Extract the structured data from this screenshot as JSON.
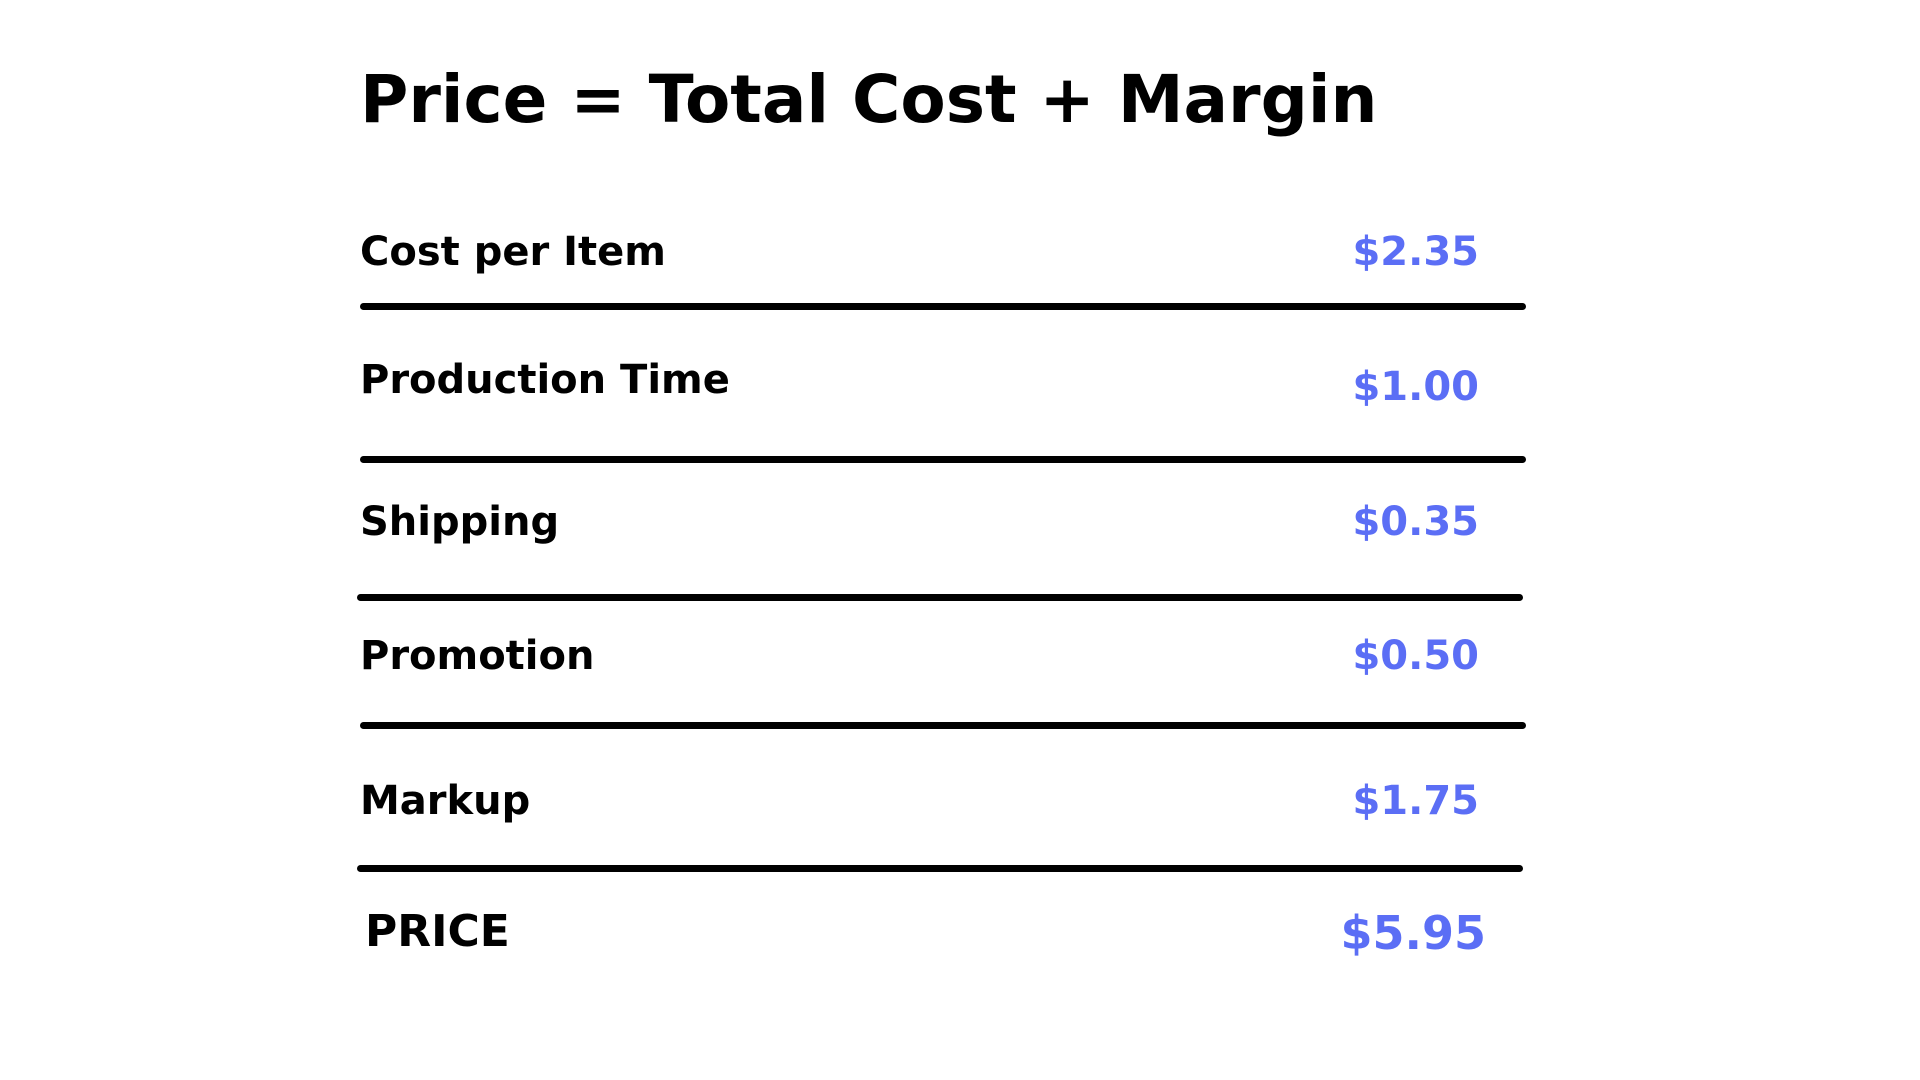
{
  "title": "Price = Total Cost + Margin",
  "accent_color": "#5b6ef5",
  "rows": [
    {
      "label": "Cost per Item",
      "value": "$2.35"
    },
    {
      "label": "Production Time",
      "value": "$1.00"
    },
    {
      "label": "Shipping",
      "value": "$0.35"
    },
    {
      "label": "Promotion",
      "value": "$0.50"
    },
    {
      "label": "Markup",
      "value": "$1.75"
    }
  ],
  "total": {
    "label": "PRICE",
    "value": "$5.95"
  }
}
